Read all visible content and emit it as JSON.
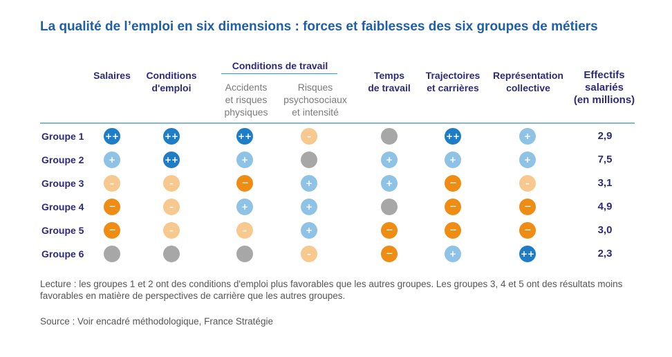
{
  "title": "La qualité de l’emploi en six dimensions : forces et faiblesses des six groupes de métiers",
  "header": {
    "salaires": "Salaires",
    "conditions_emploi": "Conditions\nd'emploi",
    "conditions_travail": "Conditions de travail",
    "accidents": "Accidents\net risques\nphysiques",
    "risques": "Risques\npsychosociaux\net intensité",
    "temps": "Temps\nde travail",
    "trajectoires": "Trajectoires\net carrières",
    "representation": "Représentation\ncollective",
    "effectifs": "Effectifs\nsalariés\n(en millions)"
  },
  "legend_colors": {
    "++": "#1e7dc4",
    "+": "#8ec3e6",
    "-": "#f7c98e",
    "--": "#ef8c14",
    "0": "#a7a7a7"
  },
  "chart_data": {
    "type": "table",
    "columns": [
      "Salaires",
      "Conditions d'emploi",
      "Accidents et risques physiques",
      "Risques psychosociaux et intensité",
      "Temps de travail",
      "Trajectoires et carrières",
      "Représentation collective",
      "Effectifs salariés (en millions)"
    ],
    "rows": [
      {
        "label": "Groupe 1",
        "ratings": [
          "++",
          "++",
          "++",
          "-",
          "0",
          "++",
          "+"
        ],
        "effectifs": "2,9"
      },
      {
        "label": "Groupe 2",
        "ratings": [
          "+",
          "++",
          "+",
          "0",
          "+",
          "+",
          "+"
        ],
        "effectifs": "7,5"
      },
      {
        "label": "Groupe 3",
        "ratings": [
          "-",
          "-",
          "--",
          "+",
          "+",
          "--",
          "-"
        ],
        "effectifs": "3,1"
      },
      {
        "label": "Groupe 4",
        "ratings": [
          "--",
          "-",
          "+",
          "+",
          "0",
          "--",
          "--"
        ],
        "effectifs": "4,9"
      },
      {
        "label": "Groupe 5",
        "ratings": [
          "--",
          "-",
          "-",
          "+",
          "--",
          "--",
          "--"
        ],
        "effectifs": "3,0"
      },
      {
        "label": "Groupe 6",
        "ratings": [
          "0",
          "0",
          "0",
          "-",
          "--",
          "+",
          "++"
        ],
        "effectifs": "2,3"
      }
    ]
  },
  "note": "Lecture : les groupes 1 et 2 ont des conditions d'emploi plus favorables que les autres groupes.  Les groupes 3, 4 et 5 ont des résultats moins favorables en matière de perspectives de carrière que les autres groupes.",
  "source": "Source : Voir encadré méthodologique, France Stratégie"
}
